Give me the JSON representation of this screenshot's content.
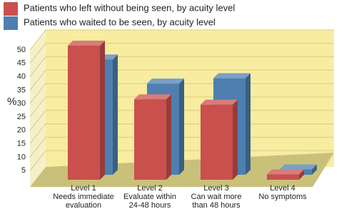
{
  "chart_data": {
    "type": "bar",
    "y_label": "%",
    "categories": [
      [
        "Level 1",
        "Needs immediate",
        "evaluation"
      ],
      [
        "Level 2",
        "Evaluate within",
        "24-48 hours"
      ],
      [
        "Level 3",
        "Can wait more",
        "than 48 hours"
      ],
      [
        "Level 4",
        "No symptoms"
      ]
    ],
    "series": [
      {
        "name": "Patients who left without being seen, by acuity level",
        "color": "#c9504d",
        "values": [
          50,
          30,
          28,
          2
        ]
      },
      {
        "name": "Patients who waited to be seen, by acuity level",
        "color": "#4f7fb0",
        "values": [
          43,
          34,
          36,
          2
        ]
      }
    ],
    "ylim": [
      0,
      50
    ],
    "yticks": [
      5,
      10,
      15,
      20,
      25,
      30,
      35,
      40,
      45,
      50
    ],
    "grid": true
  }
}
